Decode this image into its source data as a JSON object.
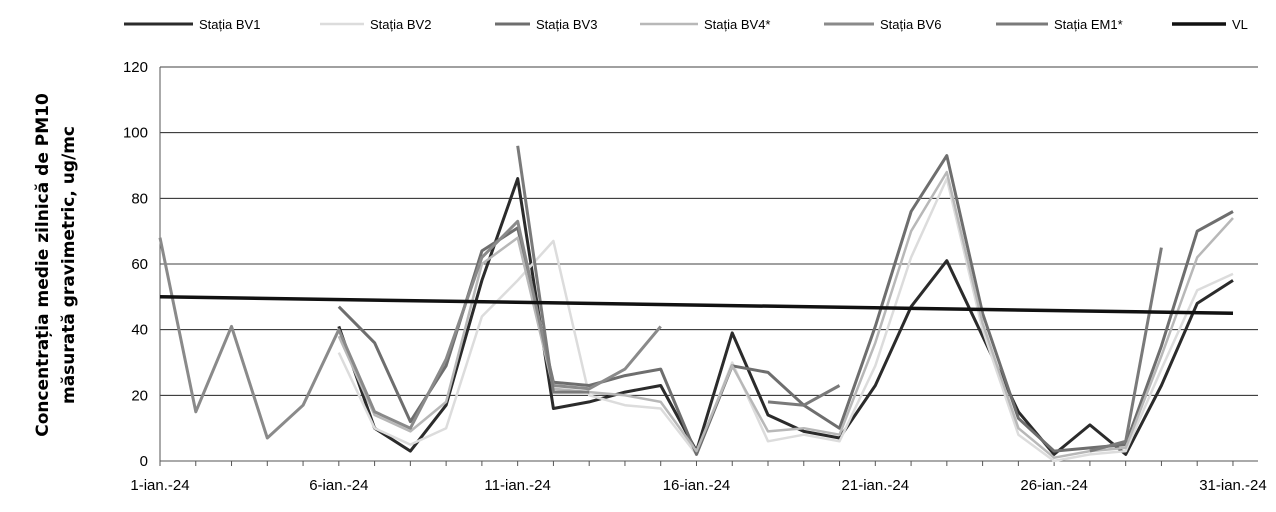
{
  "chart_data": {
    "type": "line",
    "title": "",
    "xlabel": "",
    "ylabel_lines": [
      "Concentrația medie zilnică de PM10",
      "măsurată gravimetric, ug/mc"
    ],
    "ylim": [
      0,
      120
    ],
    "yticks": [
      0,
      20,
      40,
      60,
      80,
      100,
      120
    ],
    "x_labels": {
      "1": "1-ian.-24",
      "6": "6-ian.-24",
      "11": "11-ian.-24",
      "16": "16-ian.-24",
      "21": "21-ian.-24",
      "26": "26-ian.-24",
      "31": "31-ian.-24"
    },
    "grid": true,
    "legend_position": "top",
    "series": [
      {
        "name": "Stația BV1",
        "color": "#2b2b2b",
        "width": 3,
        "points": [
          [
            6,
            41
          ],
          [
            7,
            10
          ],
          [
            8,
            3
          ],
          [
            9,
            17
          ],
          [
            10,
            55
          ],
          [
            11,
            86
          ],
          [
            12,
            16
          ],
          [
            13,
            18
          ],
          [
            14,
            21
          ],
          [
            15,
            23
          ],
          [
            16,
            3
          ],
          [
            17,
            39
          ],
          [
            18,
            14
          ],
          [
            19,
            9
          ],
          [
            20,
            7
          ],
          [
            21,
            23
          ],
          [
            22,
            47
          ],
          [
            23,
            61
          ],
          [
            24,
            38
          ],
          [
            25,
            15
          ],
          [
            26,
            2
          ],
          [
            27,
            11
          ],
          [
            28,
            2
          ],
          [
            29,
            23
          ],
          [
            30,
            48
          ],
          [
            31,
            55
          ]
        ]
      },
      {
        "name": "Stația BV2",
        "color": "#dcdcdc",
        "width": 2.5,
        "points": [
          [
            6,
            33
          ],
          [
            7,
            10
          ],
          [
            8,
            5
          ],
          [
            9,
            10
          ],
          [
            10,
            44
          ],
          [
            11,
            55
          ],
          [
            12,
            67
          ],
          [
            13,
            20
          ],
          [
            14,
            17
          ],
          [
            15,
            16
          ],
          [
            16,
            2
          ],
          [
            17,
            30
          ],
          [
            18,
            6
          ],
          [
            19,
            8
          ],
          [
            20,
            6
          ],
          [
            21,
            29
          ],
          [
            22,
            62
          ],
          [
            23,
            86
          ],
          [
            24,
            40
          ],
          [
            25,
            8
          ],
          [
            26,
            0
          ],
          [
            27,
            2
          ],
          [
            28,
            3
          ],
          [
            29,
            28
          ],
          [
            30,
            52
          ],
          [
            31,
            57
          ]
        ]
      },
      {
        "name": "Stația BV3",
        "color": "#6e6e6e",
        "width": 3,
        "points": [
          [
            6,
            47
          ],
          [
            7,
            36
          ],
          [
            8,
            12
          ],
          [
            9,
            29
          ],
          [
            10,
            64
          ],
          [
            11,
            71
          ],
          [
            12,
            24
          ],
          [
            13,
            23
          ],
          [
            14,
            26
          ],
          [
            15,
            28
          ],
          [
            16,
            2
          ],
          [
            17,
            29
          ],
          [
            18,
            27
          ],
          [
            19,
            17
          ],
          [
            20,
            10
          ],
          [
            21,
            41
          ],
          [
            22,
            76
          ],
          [
            23,
            93
          ],
          [
            24,
            45
          ],
          [
            25,
            13
          ],
          [
            26,
            3
          ],
          [
            27,
            4
          ],
          [
            28,
            5
          ],
          [
            29,
            35
          ],
          [
            30,
            70
          ],
          [
            31,
            76
          ]
        ]
      },
      {
        "name": "Stația BV4*",
        "color": "#b8b8b8",
        "width": 2.5,
        "points": [
          [
            6,
            38
          ],
          [
            7,
            14
          ],
          [
            8,
            9
          ],
          [
            9,
            18
          ],
          [
            10,
            60
          ],
          [
            11,
            68
          ],
          [
            12,
            22
          ],
          [
            13,
            21
          ],
          [
            14,
            20
          ],
          [
            15,
            18
          ],
          [
            16,
            3
          ],
          [
            17,
            29
          ],
          [
            18,
            9
          ],
          [
            19,
            10
          ],
          [
            20,
            8
          ],
          [
            21,
            36
          ],
          [
            22,
            70
          ],
          [
            23,
            88
          ],
          [
            24,
            42
          ],
          [
            25,
            10
          ],
          [
            26,
            1
          ],
          [
            27,
            3
          ],
          [
            28,
            4
          ],
          [
            29,
            32
          ],
          [
            30,
            62
          ],
          [
            31,
            74
          ]
        ]
      },
      {
        "name": "Stația BV6",
        "color": "#8a8a8a",
        "width": 3,
        "points": [
          [
            1,
            68
          ],
          [
            2,
            15
          ],
          [
            3,
            41
          ],
          [
            4,
            7
          ],
          [
            5,
            17
          ],
          [
            6,
            40
          ],
          [
            7,
            15
          ],
          [
            8,
            10
          ],
          [
            9,
            31
          ],
          [
            10,
            62
          ],
          [
            11,
            73
          ],
          [
            12,
            23
          ],
          [
            13,
            22
          ],
          [
            14,
            28
          ],
          [
            15,
            41
          ]
        ]
      },
      {
        "name": "Stația EM1*",
        "color": "#7a7a7a",
        "width": 3,
        "points": [
          [
            11,
            96
          ],
          [
            12,
            21
          ],
          [
            13,
            21
          ],
          [
            18,
            18
          ],
          [
            19,
            17
          ],
          [
            20,
            23
          ],
          [
            27,
            3
          ],
          [
            28,
            6
          ],
          [
            29,
            65
          ]
        ]
      },
      {
        "name": "VL",
        "color": "#111111",
        "width": 3.5,
        "points": [
          [
            1,
            50
          ],
          [
            31,
            45
          ]
        ]
      }
    ]
  }
}
